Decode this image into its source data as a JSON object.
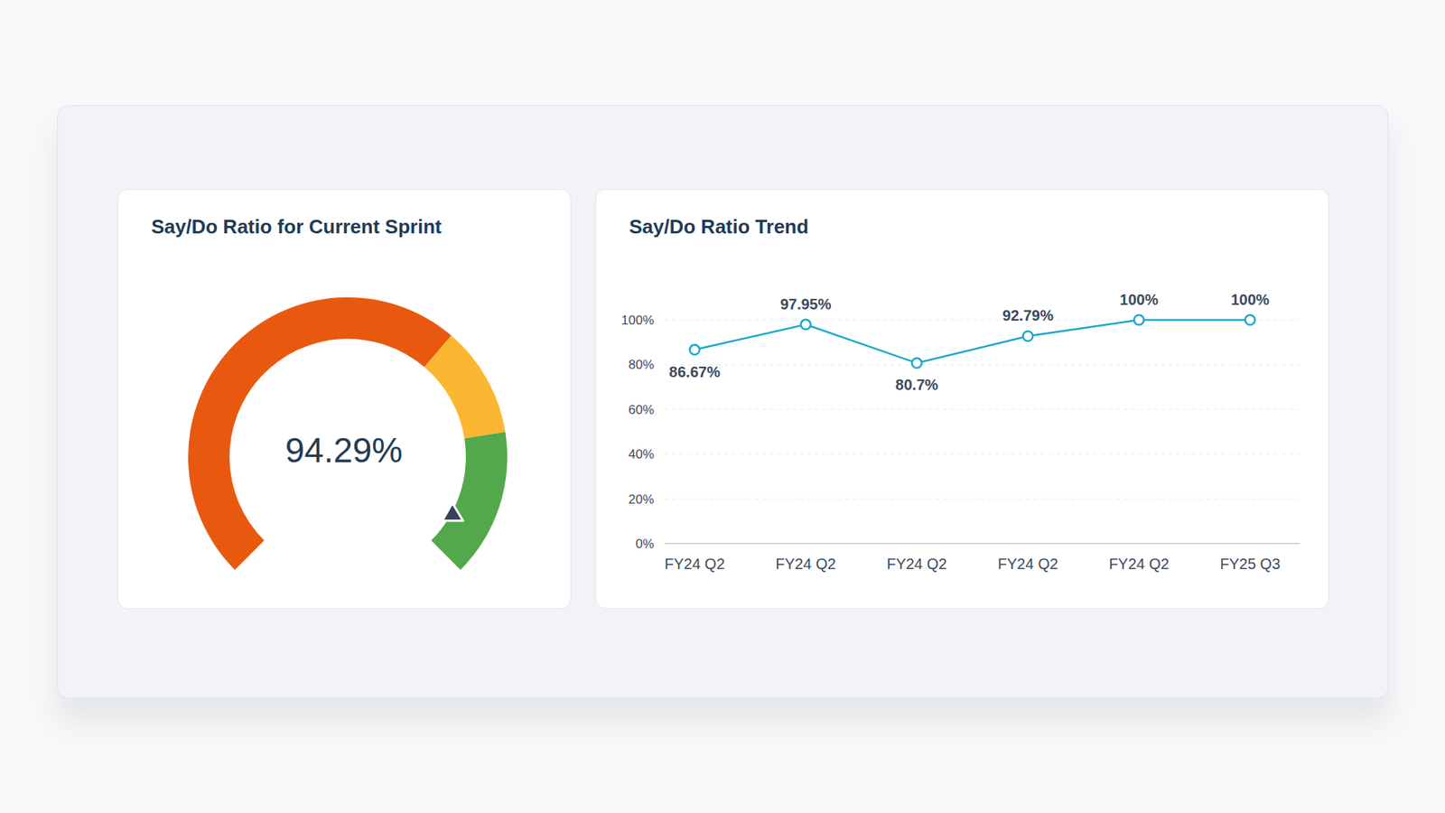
{
  "chart_data": [
    {
      "type": "gauge",
      "title": "Say/Do Ratio for Current Sprint",
      "value": 94.29,
      "value_label": "94.29%",
      "range": [
        0,
        100
      ],
      "bands": [
        {
          "to": 65,
          "color": "#e8590f"
        },
        {
          "to": 80,
          "color": "#fbb732"
        },
        {
          "to": 100,
          "color": "#52a84b"
        }
      ]
    },
    {
      "type": "line",
      "title": "Say/Do Ratio Trend",
      "categories": [
        "FY24 Q2",
        "FY24 Q2",
        "FY24 Q2",
        "FY24 Q2",
        "FY24 Q2",
        "FY25 Q3"
      ],
      "values": [
        86.67,
        97.95,
        80.7,
        92.79,
        100,
        100
      ],
      "value_labels": [
        "86.67%",
        "97.95%",
        "80.7%",
        "92.79%",
        "100%",
        "100%"
      ],
      "color": "#1ba9cc",
      "ylim": [
        0,
        100
      ],
      "yticks": [
        {
          "value": 0,
          "label": "0%"
        },
        {
          "value": 20,
          "label": "20%"
        },
        {
          "value": 40,
          "label": "40%"
        },
        {
          "value": 60,
          "label": "60%"
        },
        {
          "value": 80,
          "label": "80%"
        },
        {
          "value": 100,
          "label": "100%"
        }
      ],
      "grid": true,
      "data_labels": true,
      "marker": "circle"
    }
  ]
}
